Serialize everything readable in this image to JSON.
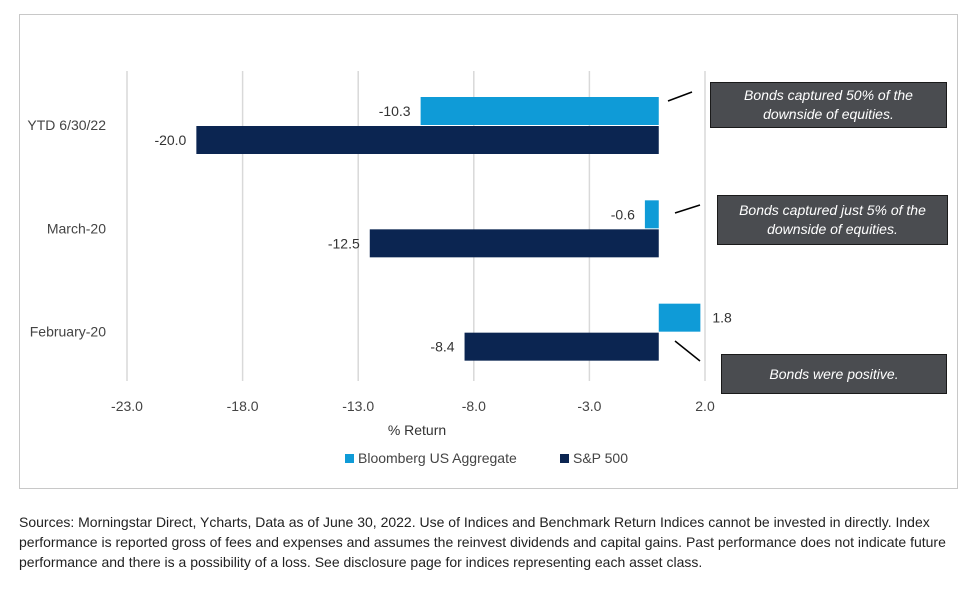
{
  "chart_data": {
    "type": "bar",
    "orientation": "horizontal",
    "categories": [
      "YTD 6/30/22",
      "March-20",
      "February-20"
    ],
    "series": [
      {
        "name": "Bloomberg US Aggregate",
        "color": "#0f9bd7",
        "values": [
          -10.3,
          -0.6,
          1.8
        ],
        "labels": [
          "-10.3",
          "-0.6",
          "1.8"
        ]
      },
      {
        "name": "S&P 500",
        "color": "#0b2551",
        "values": [
          -20.0,
          -12.5,
          -8.4
        ],
        "labels": [
          "-20.0",
          "-12.5",
          "-8.4"
        ]
      }
    ],
    "xlabel": "% Return",
    "xlim": [
      -23.0,
      2.0
    ],
    "xticks": [
      "-23.0",
      "-18.0",
      "-13.0",
      "-8.0",
      "-3.0",
      "2.0"
    ],
    "grid": true,
    "legend_position": "bottom",
    "annotations": [
      "Bonds captured 50% of the downside of equities.",
      "Bonds captured just 5% of the downside of equities.",
      "Bonds were positive."
    ]
  },
  "footnote": "Sources: Morningstar Direct, Ycharts, Data as of June 30, 2022. Use of Indices and Benchmark Return Indices cannot be invested in directly. Index performance is reported gross of fees and expenses and assumes the reinvest dividends and capital gains. Past performance does not indicate future performance and there is a possibility of a loss. See disclosure page for indices representing each asset class."
}
